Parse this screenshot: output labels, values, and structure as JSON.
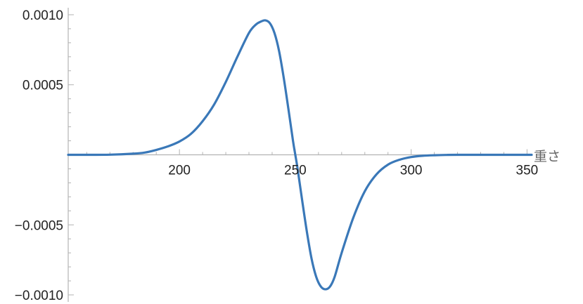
{
  "chart_data": {
    "type": "line",
    "title": "",
    "xlabel": "重さ",
    "ylabel": "",
    "xlim": [
      152,
      352
    ],
    "ylim": [
      -0.00105,
      0.00105
    ],
    "x_ticks": [
      {
        "value": 200,
        "label": "200"
      },
      {
        "value": 250,
        "label": "250"
      },
      {
        "value": 300,
        "label": "300"
      },
      {
        "value": 350,
        "label": "350"
      }
    ],
    "y_ticks": [
      {
        "value": 0.001,
        "label": "0.0010"
      },
      {
        "value": 0.0005,
        "label": "0.0005"
      },
      {
        "value": -0.0005,
        "label": "−0.0005"
      },
      {
        "value": -0.001,
        "label": "−0.0010"
      }
    ],
    "grid": false,
    "line_color": "#3a78b8",
    "axis_color": "#b3b3b3",
    "series": [
      {
        "x": [
          152,
          160,
          170,
          180,
          185,
          190,
          195,
          200,
          205,
          210,
          215,
          220,
          225,
          230,
          233,
          235,
          237,
          239,
          241,
          243,
          245,
          247,
          249,
          250,
          251,
          253,
          255,
          257,
          259,
          261,
          263,
          265,
          267,
          270,
          275,
          280,
          285,
          290,
          295,
          300,
          305,
          310,
          315,
          320,
          330,
          340,
          352
        ],
        "y": [
          0.0,
          0.0,
          1e-06,
          8e-06,
          1.6e-05,
          3.5e-05,
          6e-05,
          9.5e-05,
          0.00015,
          0.00024,
          0.00036,
          0.00052,
          0.0007,
          0.00087,
          0.00093,
          0.00095,
          0.00096,
          0.00094,
          0.00087,
          0.00074,
          0.00055,
          0.00033,
          0.0001,
          0.0,
          -0.0001,
          -0.00033,
          -0.00055,
          -0.00074,
          -0.00087,
          -0.00094,
          -0.00096,
          -0.00094,
          -0.00087,
          -0.0007,
          -0.00045,
          -0.00026,
          -0.00014,
          -7e-05,
          -3.5e-05,
          -1.6e-05,
          -7e-06,
          -3e-06,
          -1e-06,
          0.0,
          0.0,
          0.0,
          0.0
        ]
      }
    ]
  }
}
